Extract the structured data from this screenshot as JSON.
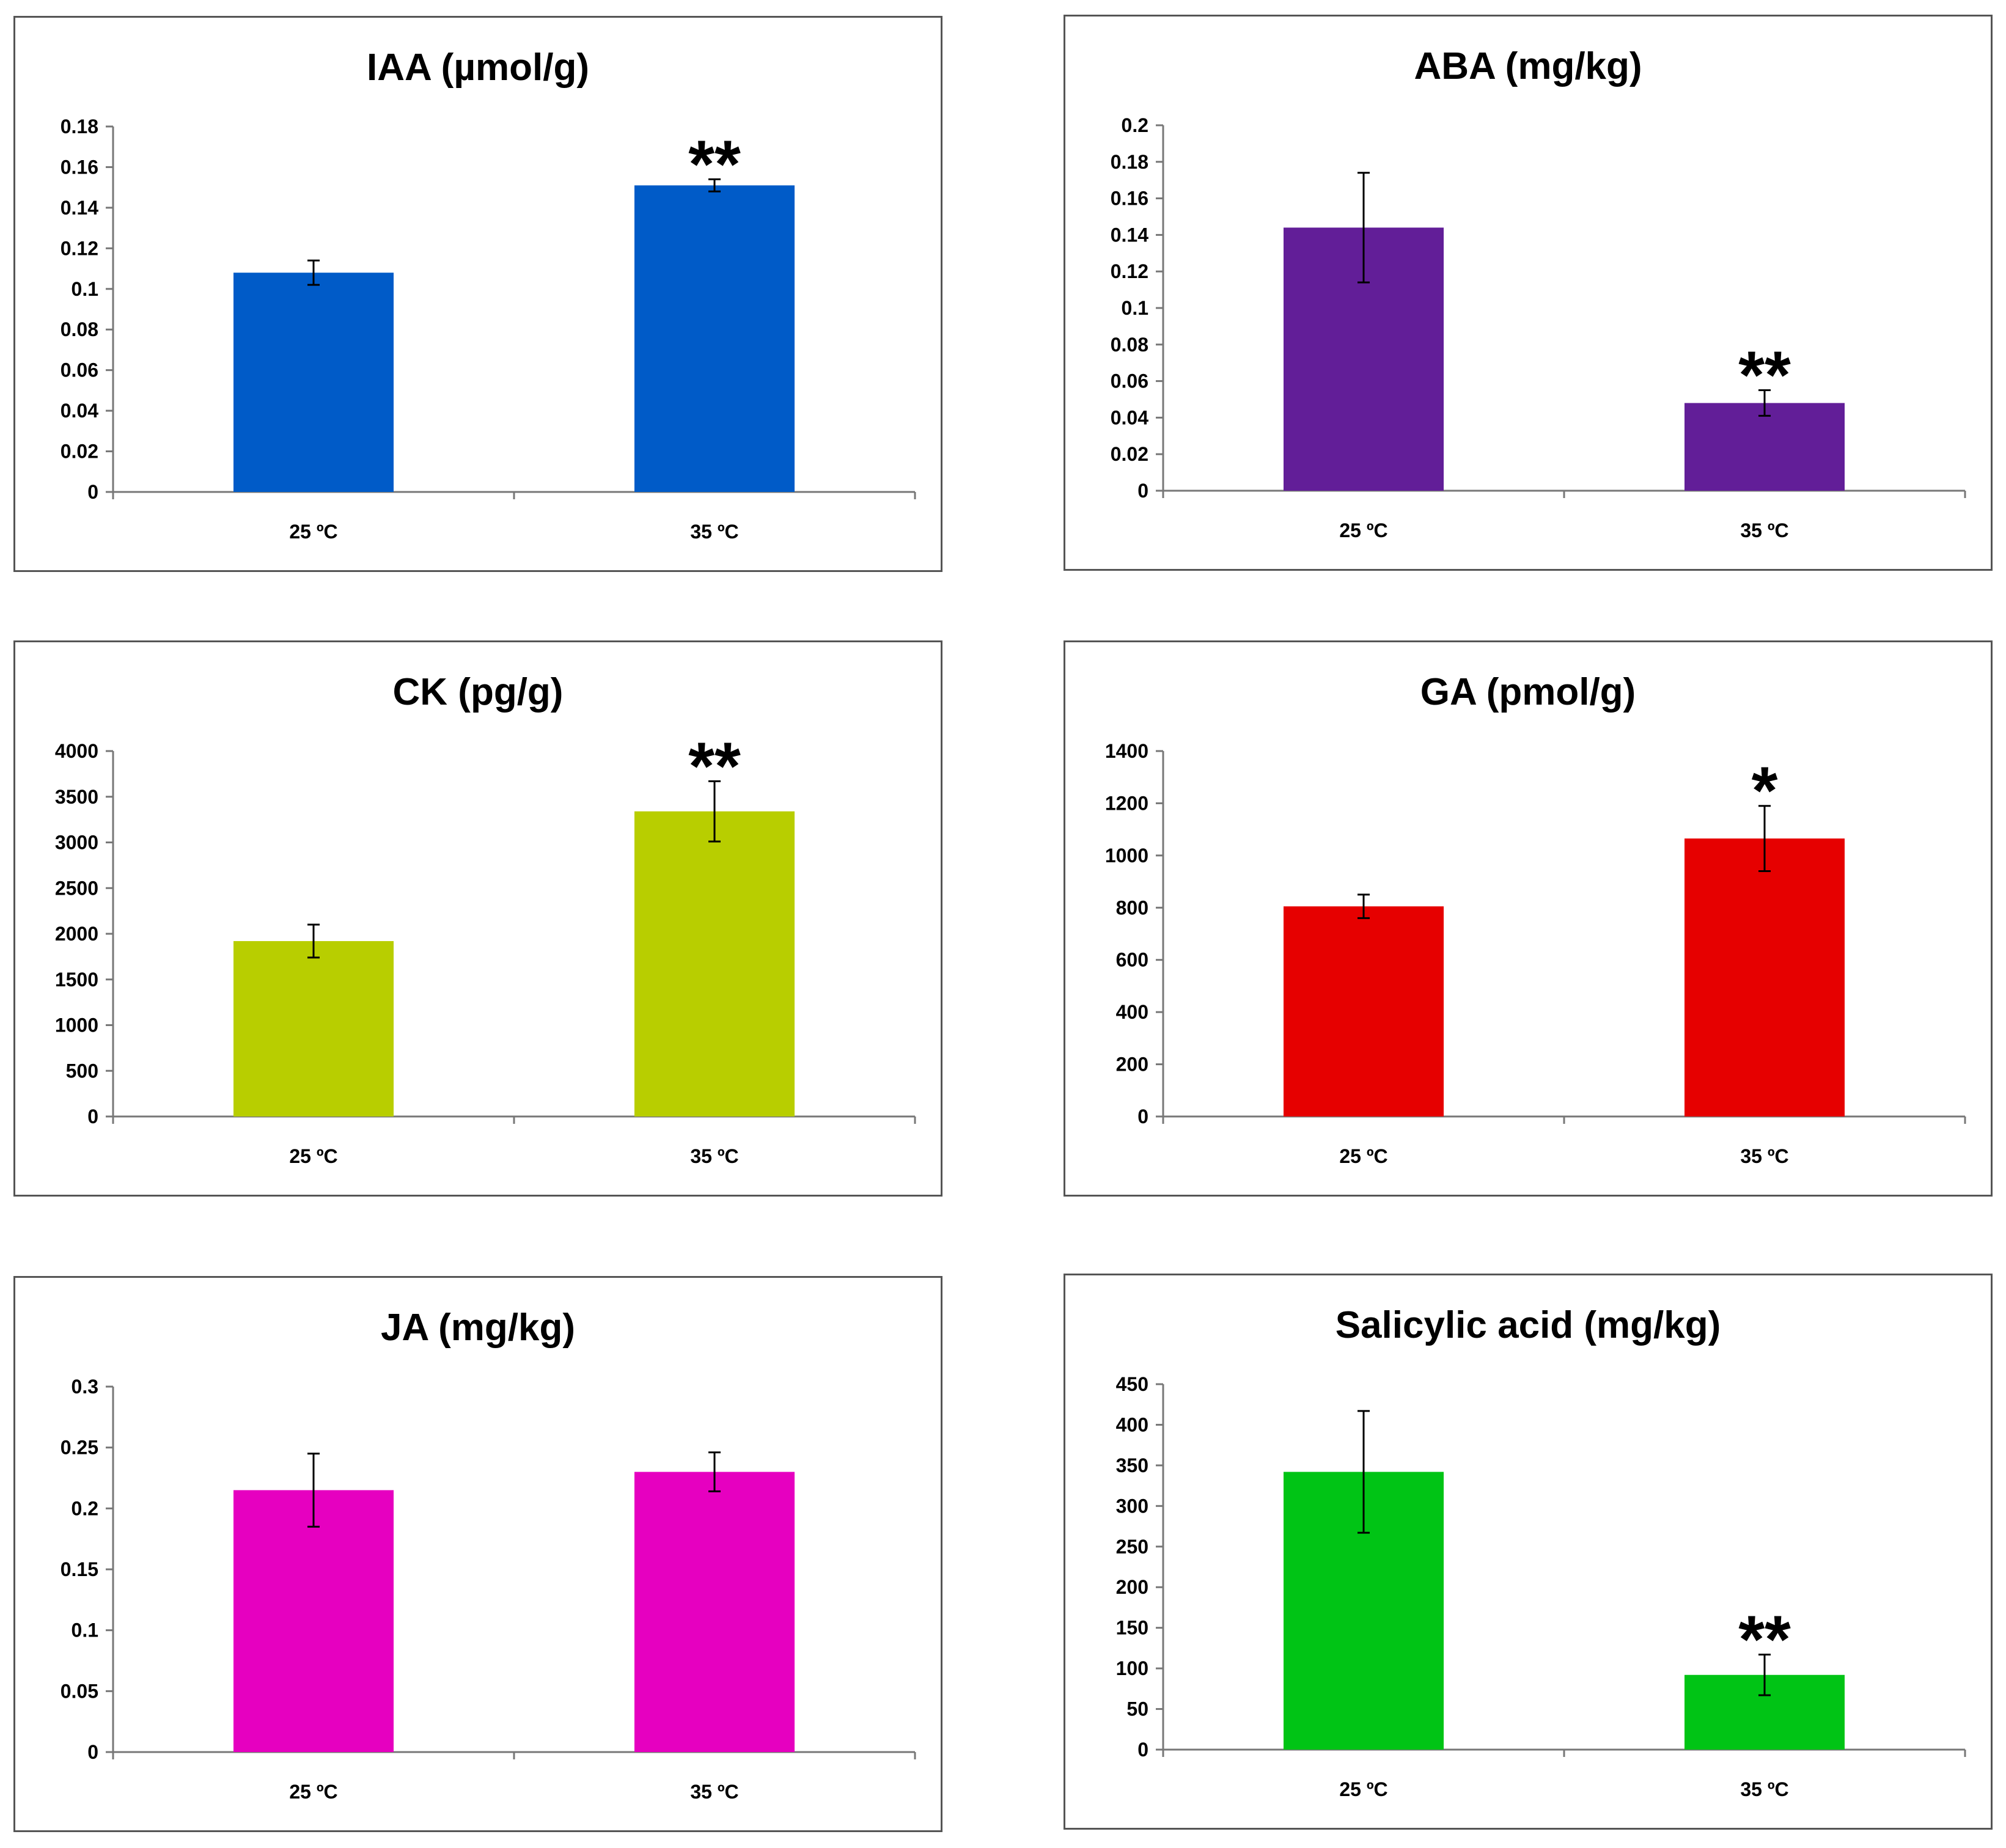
{
  "chart_data": [
    {
      "type": "bar",
      "title": "IAA (µmol/g)",
      "categories": [
        "25 ºC",
        "35 ºC"
      ],
      "values": [
        0.108,
        0.151
      ],
      "errors": [
        0.006,
        0.003
      ],
      "significance": [
        "",
        "**"
      ],
      "color": "#005BC8",
      "ylim": [
        0,
        0.18
      ],
      "ticks": [
        "0",
        "0.02",
        "0.04",
        "0.06",
        "0.08",
        "0.1",
        "0.12",
        "0.14",
        "0.16",
        "0.18"
      ]
    },
    {
      "type": "bar",
      "title": "ABA (mg/kg)",
      "categories": [
        "25 ºC",
        "35 ºC"
      ],
      "values": [
        0.144,
        0.048
      ],
      "errors": [
        0.03,
        0.007
      ],
      "significance": [
        "",
        "**"
      ],
      "color": "#621E98",
      "ylim": [
        0,
        0.2
      ],
      "ticks": [
        "0",
        "0.02",
        "0.04",
        "0.06",
        "0.08",
        "0.1",
        "0.12",
        "0.14",
        "0.16",
        "0.18",
        "0.2"
      ]
    },
    {
      "type": "bar",
      "title": "CK (pg/g)",
      "categories": [
        "25 ºC",
        "35 ºC"
      ],
      "values": [
        1920,
        3340
      ],
      "errors": [
        180,
        330
      ],
      "significance": [
        "",
        "**"
      ],
      "color": "#B8CE00",
      "ylim": [
        0,
        4000
      ],
      "ticks": [
        "0",
        "500",
        "1000",
        "1500",
        "2000",
        "2500",
        "3000",
        "3500",
        "4000"
      ]
    },
    {
      "type": "bar",
      "title": "GA (pmol/g)",
      "categories": [
        "25 ºC",
        "35 ºC"
      ],
      "values": [
        805,
        1065
      ],
      "errors": [
        45,
        125
      ],
      "significance": [
        "",
        "*"
      ],
      "color": "#E60000",
      "ylim": [
        0,
        1400
      ],
      "ticks": [
        "0",
        "200",
        "400",
        "600",
        "800",
        "1000",
        "1200",
        "1400"
      ]
    },
    {
      "type": "bar",
      "title": "JA (mg/kg)",
      "categories": [
        "25 ºC",
        "35 ºC"
      ],
      "values": [
        0.215,
        0.23
      ],
      "errors": [
        0.03,
        0.016
      ],
      "significance": [
        "",
        ""
      ],
      "color": "#E600C0",
      "ylim": [
        0,
        0.3
      ],
      "ticks": [
        "0",
        "0.05",
        "0.1",
        "0.15",
        "0.2",
        "0.25",
        "0.3"
      ]
    },
    {
      "type": "bar",
      "title": "Salicylic acid (mg/kg)",
      "categories": [
        "25 ºC",
        "35 ºC"
      ],
      "values": [
        342,
        92
      ],
      "errors": [
        75,
        25
      ],
      "significance": [
        "",
        "**"
      ],
      "color": "#00C415",
      "ylim": [
        0,
        450
      ],
      "ticks": [
        "0",
        "50",
        "100",
        "150",
        "200",
        "250",
        "300",
        "350",
        "400",
        "450"
      ]
    }
  ]
}
